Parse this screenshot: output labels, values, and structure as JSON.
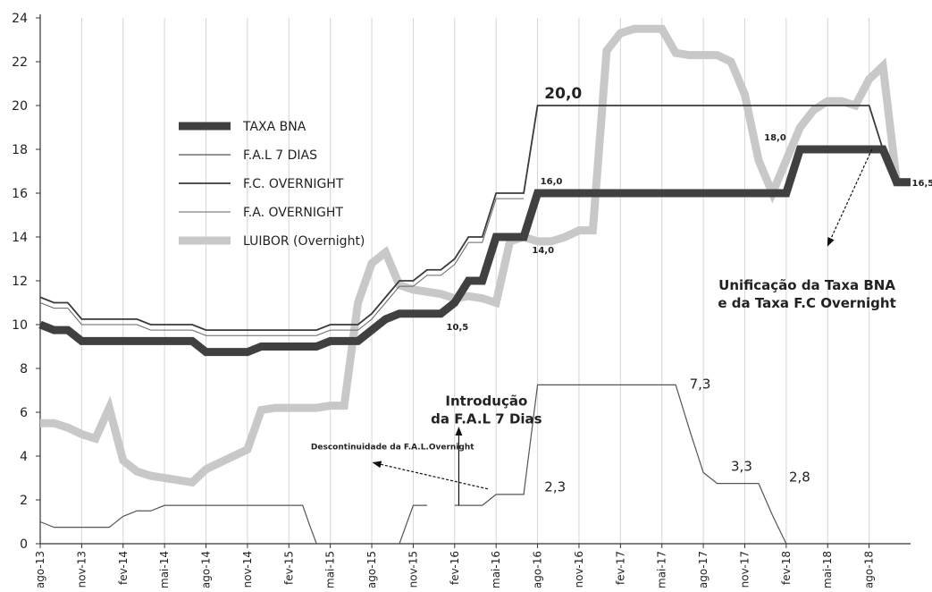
{
  "chart_data": {
    "type": "line",
    "title": "",
    "xlabel": "",
    "ylabel": "",
    "ylim": [
      0,
      24
    ],
    "yticks": [
      0,
      2,
      4,
      6,
      8,
      10,
      12,
      14,
      16,
      18,
      20,
      22,
      24
    ],
    "x_tick_labels": [
      "ago-13",
      "nov-13",
      "fev-14",
      "mai-14",
      "ago-14",
      "nov-14",
      "fev-15",
      "mai-15",
      "ago-15",
      "nov-15",
      "fev-16",
      "mai-16",
      "ago-16",
      "nov-16",
      "fev-17",
      "mai-17",
      "ago-17",
      "nov-17",
      "fev-18",
      "mai-18",
      "ago-18"
    ],
    "grid": true,
    "legend_position": "left",
    "series": [
      {
        "name": "TAXA BNA",
        "color": "#404040",
        "width": 9,
        "points": [
          [
            0,
            10.0
          ],
          [
            1,
            9.75
          ],
          [
            2,
            9.75
          ],
          [
            3,
            9.25
          ],
          [
            4,
            9.25
          ],
          [
            5,
            9.25
          ],
          [
            6,
            9.25
          ],
          [
            7,
            9.25
          ],
          [
            8,
            9.25
          ],
          [
            9,
            9.25
          ],
          [
            10,
            9.25
          ],
          [
            11,
            9.25
          ],
          [
            12,
            8.75
          ],
          [
            13,
            8.75
          ],
          [
            14,
            8.75
          ],
          [
            15,
            8.75
          ],
          [
            16,
            9.0
          ],
          [
            17,
            9.0
          ],
          [
            18,
            9.0
          ],
          [
            19,
            9.0
          ],
          [
            20,
            9.0
          ],
          [
            21,
            9.25
          ],
          [
            22,
            9.25
          ],
          [
            23,
            9.25
          ],
          [
            24,
            9.75
          ],
          [
            25,
            10.25
          ],
          [
            26,
            10.5
          ],
          [
            27,
            10.5
          ],
          [
            28,
            10.5
          ],
          [
            29,
            10.5
          ],
          [
            30,
            11.0
          ],
          [
            31,
            12.0
          ],
          [
            32,
            12.0
          ],
          [
            33,
            14.0
          ],
          [
            34,
            14.0
          ],
          [
            35,
            14.0
          ],
          [
            36,
            16.0
          ],
          [
            37,
            16.0
          ],
          [
            38,
            16.0
          ],
          [
            39,
            16.0
          ],
          [
            40,
            16.0
          ],
          [
            41,
            16.0
          ],
          [
            42,
            16.0
          ],
          [
            43,
            16.0
          ],
          [
            44,
            16.0
          ],
          [
            45,
            16.0
          ],
          [
            46,
            16.0
          ],
          [
            47,
            16.0
          ],
          [
            48,
            16.0
          ],
          [
            49,
            16.0
          ],
          [
            50,
            16.0
          ],
          [
            51,
            16.0
          ],
          [
            52,
            16.0
          ],
          [
            53,
            16.0
          ],
          [
            54,
            16.0
          ],
          [
            55,
            18.0
          ],
          [
            56,
            18.0
          ],
          [
            57,
            18.0
          ],
          [
            58,
            18.0
          ],
          [
            59,
            18.0
          ],
          [
            60,
            18.0
          ],
          [
            61,
            18.0
          ],
          [
            62,
            16.5
          ],
          [
            63,
            16.5
          ]
        ]
      },
      {
        "name": "F.A.L 7 DIAS",
        "color": "#555555",
        "width": 1.2,
        "segments": [
          [
            [
              0,
              1.0
            ],
            [
              1,
              0.75
            ],
            [
              2,
              0.75
            ],
            [
              3,
              0.75
            ],
            [
              4,
              0.75
            ],
            [
              5,
              0.75
            ],
            [
              6,
              1.25
            ],
            [
              7,
              1.5
            ],
            [
              8,
              1.5
            ],
            [
              9,
              1.75
            ],
            [
              10,
              1.75
            ],
            [
              11,
              1.75
            ],
            [
              12,
              1.75
            ],
            [
              13,
              1.75
            ],
            [
              14,
              1.75
            ],
            [
              15,
              1.75
            ],
            [
              16,
              1.75
            ],
            [
              17,
              1.75
            ],
            [
              18,
              1.75
            ],
            [
              19,
              1.75
            ],
            [
              19.5,
              0.85
            ],
            [
              20,
              0
            ]
          ],
          [
            [
              26,
              0
            ],
            [
              27,
              1.75
            ],
            [
              28,
              1.75
            ]
          ],
          [
            [
              30,
              1.75
            ],
            [
              31,
              1.75
            ],
            [
              32,
              1.75
            ],
            [
              33,
              2.25
            ],
            [
              34,
              2.25
            ],
            [
              35,
              2.25
            ],
            [
              36,
              7.25
            ],
            [
              37,
              7.25
            ],
            [
              38,
              7.25
            ],
            [
              39,
              7.25
            ],
            [
              40,
              7.25
            ],
            [
              41,
              7.25
            ],
            [
              42,
              7.25
            ],
            [
              43,
              7.25
            ],
            [
              44,
              7.25
            ],
            [
              45,
              7.25
            ],
            [
              46,
              7.25
            ],
            [
              47,
              5.2
            ],
            [
              48,
              3.25
            ],
            [
              49,
              2.75
            ],
            [
              50,
              2.75
            ],
            [
              51,
              2.75
            ],
            [
              52,
              2.75
            ],
            [
              53,
              1.3
            ],
            [
              54,
              0
            ]
          ]
        ]
      },
      {
        "name": "F.C. OVERNIGHT",
        "color": "#3a3a3a",
        "width": 1.8,
        "points": [
          [
            0,
            11.25
          ],
          [
            1,
            11.0
          ],
          [
            2,
            11.0
          ],
          [
            3,
            10.25
          ],
          [
            4,
            10.25
          ],
          [
            5,
            10.25
          ],
          [
            6,
            10.25
          ],
          [
            7,
            10.25
          ],
          [
            8,
            10.0
          ],
          [
            9,
            10.0
          ],
          [
            10,
            10.0
          ],
          [
            11,
            10.0
          ],
          [
            12,
            9.75
          ],
          [
            13,
            9.75
          ],
          [
            14,
            9.75
          ],
          [
            15,
            9.75
          ],
          [
            16,
            9.75
          ],
          [
            17,
            9.75
          ],
          [
            18,
            9.75
          ],
          [
            19,
            9.75
          ],
          [
            20,
            9.75
          ],
          [
            21,
            10.0
          ],
          [
            22,
            10.0
          ],
          [
            23,
            10.0
          ],
          [
            24,
            10.5
          ],
          [
            25,
            11.25
          ],
          [
            26,
            12.0
          ],
          [
            27,
            12.0
          ],
          [
            28,
            12.5
          ],
          [
            29,
            12.5
          ],
          [
            30,
            13.0
          ],
          [
            31,
            14.0
          ],
          [
            32,
            14.0
          ],
          [
            33,
            16.0
          ],
          [
            34,
            16.0
          ],
          [
            35,
            16.0
          ],
          [
            36,
            20.0
          ],
          [
            37,
            20.0
          ],
          [
            38,
            20.0
          ],
          [
            39,
            20.0
          ],
          [
            40,
            20.0
          ],
          [
            41,
            20.0
          ],
          [
            42,
            20.0
          ],
          [
            43,
            20.0
          ],
          [
            44,
            20.0
          ],
          [
            45,
            20.0
          ],
          [
            46,
            20.0
          ],
          [
            47,
            20.0
          ],
          [
            48,
            20.0
          ],
          [
            49,
            20.0
          ],
          [
            50,
            20.0
          ],
          [
            51,
            20.0
          ],
          [
            52,
            20.0
          ],
          [
            53,
            20.0
          ],
          [
            54,
            20.0
          ],
          [
            55,
            20.0
          ],
          [
            56,
            20.0
          ],
          [
            57,
            20.0
          ],
          [
            58,
            20.0
          ],
          [
            59,
            20.0
          ],
          [
            60,
            20.0
          ],
          [
            61,
            18.0
          ]
        ]
      },
      {
        "name": "F.A. OVERNIGHT",
        "color": "#666666",
        "width": 1.0,
        "points": [
          [
            0,
            11.0
          ],
          [
            1,
            10.75
          ],
          [
            2,
            10.75
          ],
          [
            3,
            10.0
          ],
          [
            4,
            10.0
          ],
          [
            5,
            10.0
          ],
          [
            6,
            10.0
          ],
          [
            7,
            10.0
          ],
          [
            8,
            9.75
          ],
          [
            9,
            9.75
          ],
          [
            10,
            9.75
          ],
          [
            11,
            9.75
          ],
          [
            12,
            9.5
          ],
          [
            13,
            9.5
          ],
          [
            14,
            9.5
          ],
          [
            15,
            9.5
          ],
          [
            16,
            9.5
          ],
          [
            17,
            9.5
          ],
          [
            18,
            9.5
          ],
          [
            19,
            9.5
          ],
          [
            20,
            9.5
          ],
          [
            21,
            9.75
          ],
          [
            22,
            9.75
          ],
          [
            23,
            9.75
          ],
          [
            24,
            10.25
          ],
          [
            25,
            11.0
          ],
          [
            26,
            11.75
          ],
          [
            27,
            11.75
          ],
          [
            28,
            12.25
          ],
          [
            29,
            12.25
          ],
          [
            30,
            12.75
          ],
          [
            31,
            13.75
          ],
          [
            32,
            13.75
          ],
          [
            33,
            15.75
          ],
          [
            34,
            15.75
          ],
          [
            35,
            15.75
          ]
        ]
      },
      {
        "name": "LUIBOR (Overnight)",
        "color": "#c8c8c8",
        "width": 9,
        "points": [
          [
            0,
            5.5
          ],
          [
            1,
            5.5
          ],
          [
            2,
            5.3
          ],
          [
            3,
            5.0
          ],
          [
            4,
            4.8
          ],
          [
            5,
            6.2
          ],
          [
            6,
            3.8
          ],
          [
            7,
            3.3
          ],
          [
            8,
            3.1
          ],
          [
            9,
            3.0
          ],
          [
            10,
            2.9
          ],
          [
            11,
            2.8
          ],
          [
            12,
            3.4
          ],
          [
            13,
            3.7
          ],
          [
            14,
            4.0
          ],
          [
            15,
            4.3
          ],
          [
            16,
            6.1
          ],
          [
            17,
            6.2
          ],
          [
            18,
            6.2
          ],
          [
            19,
            6.2
          ],
          [
            20,
            6.2
          ],
          [
            21,
            6.3
          ],
          [
            22,
            6.3
          ],
          [
            23,
            11.0
          ],
          [
            24,
            12.8
          ],
          [
            25,
            13.3
          ],
          [
            26,
            11.8
          ],
          [
            27,
            11.6
          ],
          [
            28,
            11.5
          ],
          [
            29,
            11.4
          ],
          [
            30,
            11.2
          ],
          [
            31,
            11.3
          ],
          [
            32,
            11.2
          ],
          [
            33,
            11.0
          ],
          [
            34,
            13.8
          ],
          [
            35,
            14.0
          ],
          [
            36,
            13.8
          ],
          [
            37,
            13.8
          ],
          [
            38,
            14.0
          ],
          [
            39,
            14.3
          ],
          [
            40,
            14.3
          ],
          [
            41,
            22.5
          ],
          [
            42,
            23.3
          ],
          [
            43,
            23.5
          ],
          [
            44,
            23.5
          ],
          [
            45,
            23.5
          ],
          [
            46,
            22.4
          ],
          [
            47,
            22.3
          ],
          [
            48,
            22.3
          ],
          [
            49,
            22.3
          ],
          [
            50,
            22.0
          ],
          [
            51,
            20.5
          ],
          [
            52,
            17.5
          ],
          [
            53,
            16.0
          ],
          [
            54,
            17.5
          ],
          [
            55,
            19.0
          ],
          [
            56,
            19.8
          ],
          [
            57,
            20.2
          ],
          [
            58,
            20.2
          ],
          [
            59,
            20.0
          ],
          [
            60,
            21.2
          ],
          [
            61,
            21.8
          ],
          [
            62,
            16.5
          ],
          [
            63,
            16.5
          ]
        ]
      }
    ],
    "legend": [
      "TAXA BNA",
      "F.A.L 7 DIAS",
      "F.C. OVERNIGHT",
      "F.A. OVERNIGHT",
      "LUIBOR (Overnight)"
    ],
    "data_labels": [
      {
        "text": "20,0",
        "x": 36.5,
        "y": 20.0,
        "style": "bold-large"
      },
      {
        "text": "16,0",
        "x": 36.2,
        "y": 16.0,
        "style": "small"
      },
      {
        "text": "14,0",
        "x": 35.6,
        "y": 14.0,
        "style": "small"
      },
      {
        "text": "10,5",
        "x": 29.4,
        "y": 10.5,
        "style": "small"
      },
      {
        "text": "18,0",
        "x": 52.4,
        "y": 18.0,
        "style": "small"
      },
      {
        "text": "16,5",
        "x": 63.1,
        "y": 16.5,
        "style": "small"
      },
      {
        "text": "7,3",
        "x": 47.0,
        "y": 7.25,
        "style": "large"
      },
      {
        "text": "3,3",
        "x": 50.0,
        "y": 3.25,
        "style": "large"
      },
      {
        "text": "2,8",
        "x": 54.2,
        "y": 2.75,
        "style": "large"
      },
      {
        "text": "2,3",
        "x": 36.5,
        "y": 2.3,
        "style": "large"
      }
    ],
    "annotations": [
      {
        "lines": [
          "Unificação da Taxa BNA",
          "e da Taxa F.C Overnight"
        ],
        "x": 55.5,
        "y": 11.6
      },
      {
        "lines": [
          "Introdução",
          "da F.A.L 7 Dias"
        ],
        "x": 32.3,
        "y": 6.3
      },
      {
        "lines": [
          "Descontinuidade da F.A.L.Overnight"
        ],
        "x": 25.5,
        "y": 4.3
      }
    ]
  }
}
